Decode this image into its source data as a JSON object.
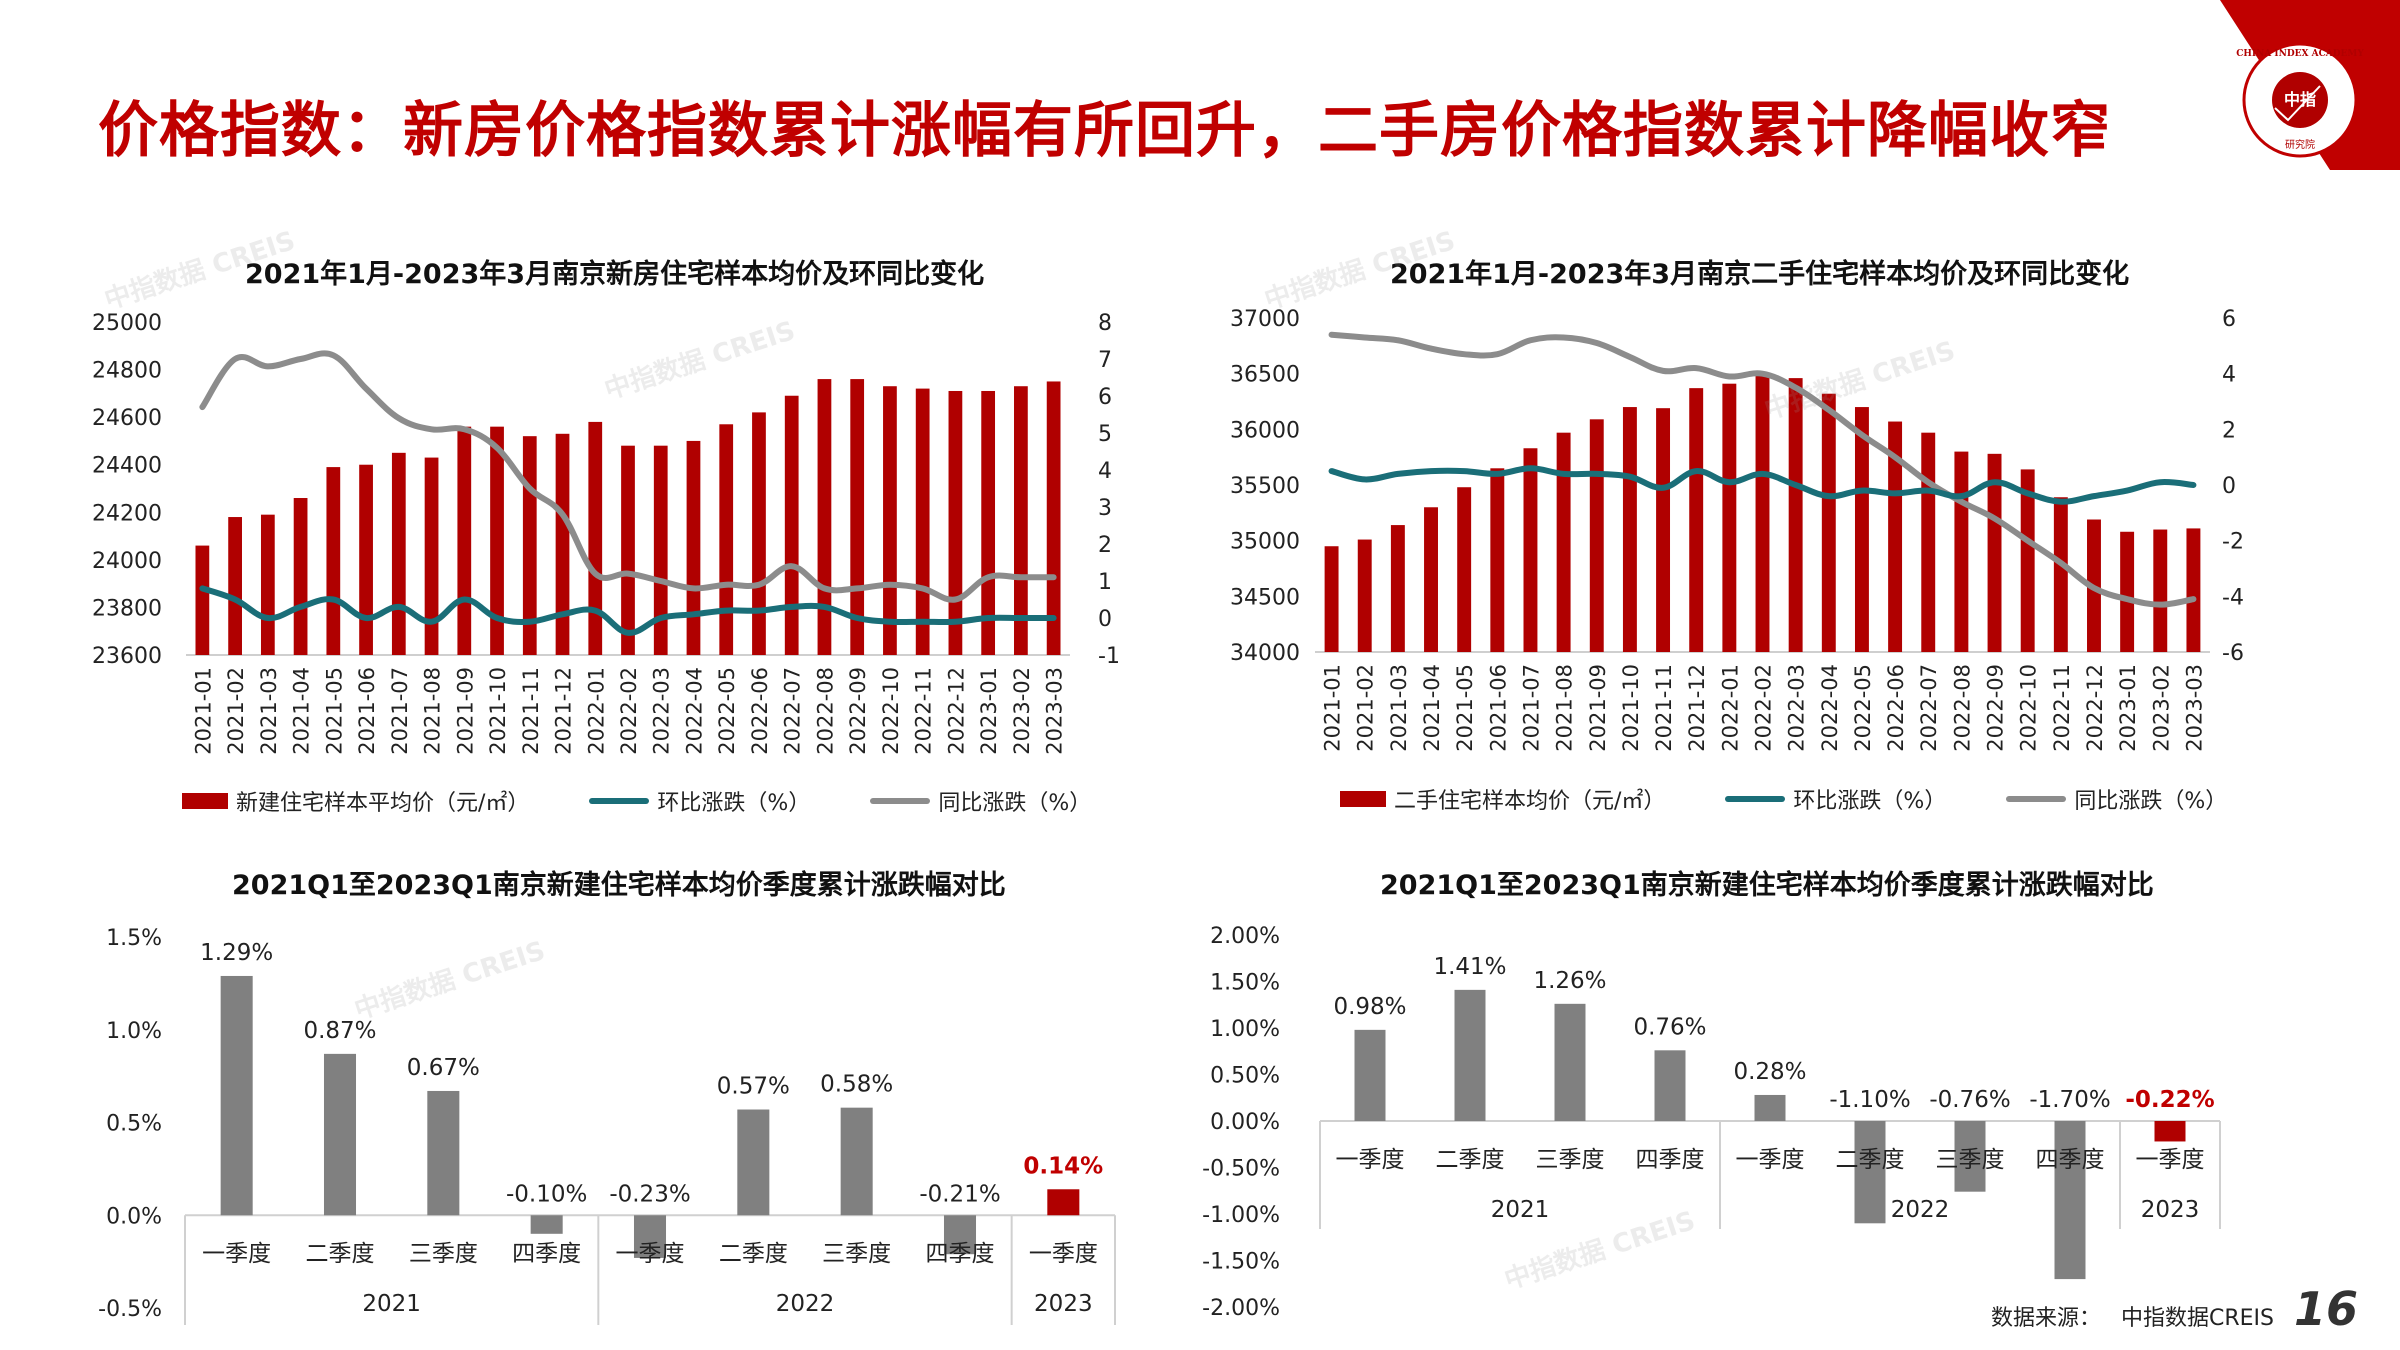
{
  "page": {
    "title": "价格指数：新房价格指数累计涨幅有所回升，二手房价格指数累计降幅收窄",
    "logo_text": "CHINA INDEX ACADEMY",
    "logo_center": "中指",
    "logo_bottom": "研究院",
    "watermark": "中指数据 CREIS",
    "source_label": "数据来源：",
    "source_value": "中指数据CREIS",
    "page_number": "16",
    "colors": {
      "accent": "#c00000",
      "bar_red": "#b00000",
      "mom_line": "#1a6e78",
      "yoy_line": "#8c8c8c",
      "bar_gray": "#808080"
    }
  },
  "chart_data": [
    {
      "type": "bar",
      "title": "2021年1月-2023年3月南京新房住宅样本均价及环同比变化",
      "categories": [
        "2021-01",
        "2021-02",
        "2021-03",
        "2021-04",
        "2021-05",
        "2021-06",
        "2021-07",
        "2021-08",
        "2021-09",
        "2021-10",
        "2021-11",
        "2021-12",
        "2022-01",
        "2022-02",
        "2022-03",
        "2022-04",
        "2022-05",
        "2022-06",
        "2022-07",
        "2022-08",
        "2022-09",
        "2022-10",
        "2022-11",
        "2022-12",
        "2023-01",
        "2023-02",
        "2023-03"
      ],
      "ylim": [
        23600,
        25000
      ],
      "yticks": [
        "25000",
        "24800",
        "24600",
        "24400",
        "24200",
        "24000",
        "23800",
        "23600"
      ],
      "y2lim": [
        -1,
        8
      ],
      "y2ticks": [
        "8",
        "7",
        "6",
        "5",
        "4",
        "3",
        "2",
        "1",
        "0",
        "-1"
      ],
      "series": [
        {
          "name": "新建住宅样本平均价（元/㎡）",
          "kind": "bar",
          "axis": "left",
          "values": [
            24060,
            24180,
            24190,
            24260,
            24390,
            24400,
            24450,
            24430,
            24560,
            24560,
            24520,
            24530,
            24580,
            24480,
            24480,
            24500,
            24570,
            24620,
            24690,
            24760,
            24760,
            24730,
            24720,
            24710,
            24710,
            24730,
            24750
          ]
        },
        {
          "name": "环比涨跌（%）",
          "kind": "line",
          "axis": "right",
          "values": [
            0.8,
            0.5,
            0.0,
            0.3,
            0.5,
            0.0,
            0.3,
            -0.1,
            0.5,
            0.0,
            -0.1,
            0.1,
            0.2,
            -0.4,
            0.0,
            0.1,
            0.2,
            0.2,
            0.3,
            0.3,
            0.0,
            -0.1,
            -0.1,
            -0.1,
            0.0,
            0.0,
            0.0
          ]
        },
        {
          "name": "同比涨跌（%）",
          "kind": "line",
          "axis": "right",
          "values": [
            5.7,
            7.0,
            6.8,
            7.0,
            7.1,
            6.2,
            5.4,
            5.1,
            5.1,
            4.6,
            3.5,
            2.8,
            1.2,
            1.2,
            1.0,
            0.8,
            0.9,
            0.9,
            1.4,
            0.8,
            0.8,
            0.9,
            0.8,
            0.5,
            1.1,
            1.1,
            1.1
          ]
        }
      ],
      "legend_position": "bottom"
    },
    {
      "type": "bar",
      "title": "2021年1月-2023年3月南京二手住宅样本均价及环同比变化",
      "categories": [
        "2021-01",
        "2021-02",
        "2021-03",
        "2021-04",
        "2021-05",
        "2021-06",
        "2021-07",
        "2021-08",
        "2021-09",
        "2021-10",
        "2021-11",
        "2021-12",
        "2022-01",
        "2022-02",
        "2022-03",
        "2022-04",
        "2022-05",
        "2022-06",
        "2022-07",
        "2022-08",
        "2022-09",
        "2022-10",
        "2022-11",
        "2022-12",
        "2023-01",
        "2023-02",
        "2023-03"
      ],
      "ylim": [
        34000,
        37000
      ],
      "yticks": [
        "37000",
        "36500",
        "36000",
        "35500",
        "35000",
        "34500",
        "34000"
      ],
      "y2lim": [
        -6,
        6
      ],
      "y2ticks": [
        "6",
        "4",
        "2",
        "0",
        "-2",
        "-4",
        "-6"
      ],
      "series": [
        {
          "name": "二手住宅样本均价（元/㎡）",
          "kind": "bar",
          "axis": "left",
          "values": [
            34950,
            35010,
            35140,
            35300,
            35480,
            35650,
            35830,
            35970,
            36090,
            36200,
            36190,
            36370,
            36410,
            36500,
            36460,
            36320,
            36200,
            36070,
            35970,
            35800,
            35780,
            35640,
            35390,
            35190,
            35080,
            35100,
            35110
          ]
        },
        {
          "name": "环比涨跌（%）",
          "kind": "line",
          "axis": "right",
          "values": [
            0.5,
            0.2,
            0.4,
            0.5,
            0.5,
            0.4,
            0.6,
            0.4,
            0.4,
            0.3,
            -0.1,
            0.5,
            0.1,
            0.4,
            0.0,
            -0.4,
            -0.2,
            -0.3,
            -0.2,
            -0.4,
            0.1,
            -0.3,
            -0.6,
            -0.4,
            -0.2,
            0.1,
            0.0
          ]
        },
        {
          "name": "同比涨跌（%）",
          "kind": "line",
          "axis": "right",
          "values": [
            5.4,
            5.3,
            5.2,
            4.9,
            4.7,
            4.7,
            5.2,
            5.3,
            5.1,
            4.6,
            4.1,
            4.2,
            3.9,
            4.0,
            3.5,
            2.7,
            1.8,
            1.0,
            0.1,
            -0.6,
            -1.2,
            -2.0,
            -2.8,
            -3.7,
            -4.1,
            -4.3,
            -4.1
          ]
        }
      ],
      "legend_position": "bottom"
    },
    {
      "type": "bar",
      "title": "2021Q1至2023Q1南京新建住宅样本均价季度累计涨跌幅对比",
      "categories": [
        "一季度",
        "二季度",
        "三季度",
        "四季度",
        "一季度",
        "二季度",
        "三季度",
        "四季度",
        "一季度"
      ],
      "groups": [
        {
          "label": "2021",
          "count": 4
        },
        {
          "label": "2022",
          "count": 4
        },
        {
          "label": "2023",
          "count": 1
        }
      ],
      "values": [
        1.29,
        0.87,
        0.67,
        -0.1,
        -0.23,
        0.57,
        0.58,
        -0.21,
        0.14
      ],
      "labels": [
        "1.29%",
        "0.87%",
        "0.67%",
        "-0.10%",
        "-0.23%",
        "0.57%",
        "0.58%",
        "-0.21%",
        "0.14%"
      ],
      "highlight_index": 8,
      "ylim": [
        -0.5,
        1.5
      ],
      "yticks": [
        "1.5%",
        "1.0%",
        "0.5%",
        "0.0%",
        "-0.5%"
      ],
      "ylabel": ""
    },
    {
      "type": "bar",
      "title": "2021Q1至2023Q1南京新建住宅样本均价季度累计涨跌幅对比",
      "categories": [
        "一季度",
        "二季度",
        "三季度",
        "四季度",
        "一季度",
        "二季度",
        "三季度",
        "四季度",
        "一季度"
      ],
      "groups": [
        {
          "label": "2021",
          "count": 4
        },
        {
          "label": "2022",
          "count": 4
        },
        {
          "label": "2023",
          "count": 1
        }
      ],
      "values": [
        0.98,
        1.41,
        1.26,
        0.76,
        0.28,
        -1.1,
        -0.76,
        -1.7,
        -0.22
      ],
      "labels": [
        "0.98%",
        "1.41%",
        "1.26%",
        "0.76%",
        "0.28%",
        "-1.10%",
        "-0.76%",
        "-1.70%",
        "-0.22%"
      ],
      "highlight_index": 8,
      "ylim": [
        -2.0,
        2.0
      ],
      "yticks": [
        "2.00%",
        "1.50%",
        "1.00%",
        "0.50%",
        "0.00%",
        "-0.50%",
        "-1.00%",
        "-1.50%",
        "-2.00%"
      ],
      "ylabel": ""
    }
  ]
}
